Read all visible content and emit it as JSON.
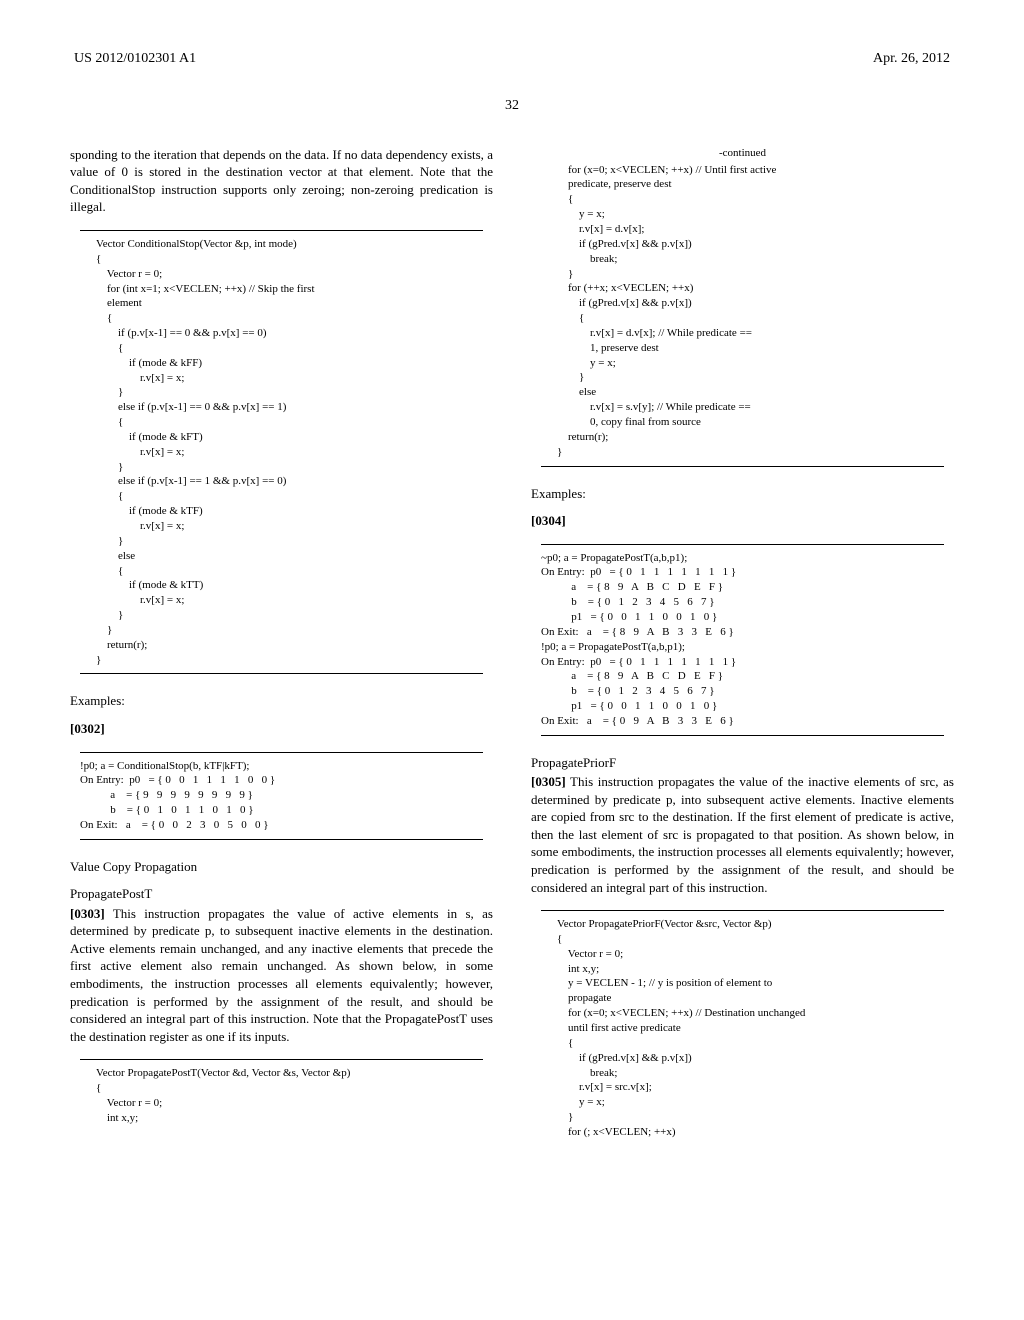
{
  "header": {
    "pub_number": "US 2012/0102301 A1",
    "date": "Apr. 26, 2012",
    "page": "32"
  },
  "col_left": {
    "intro_para": "sponding to the iteration that depends on the data. If no data dependency exists, a value of 0 is stored in the destination vector at that element. Note that the ConditionalStop instruction supports only zeroing; non-zeroing predication is illegal.",
    "code1": "Vector ConditionalStop(Vector &p, int mode)\n{\n    Vector r = 0;\n    for (int x=1; x<VECLEN; ++x) // Skip the first\n    element\n    {\n        if (p.v[x-1] == 0 && p.v[x] == 0)\n        {\n            if (mode & kFF)\n                r.v[x] = x;\n        }\n        else if (p.v[x-1] == 0 && p.v[x] == 1)\n        {\n            if (mode & kFT)\n                r.v[x] = x;\n        }\n        else if (p.v[x-1] == 1 && p.v[x] == 0)\n        {\n            if (mode & kTF)\n                r.v[x] = x;\n        }\n        else\n        {\n            if (mode & kTT)\n                r.v[x] = x;\n        }\n    }\n    return(r);\n}",
    "examples_label": "Examples:",
    "para_num1": "[0302]",
    "table1": "!p0; a = ConditionalStop(b, kTF|kFT);\nOn Entry:  p0   = { 0   0   1   1   1   1   0   0 }\n           a    = { 9   9   9   9   9   9   9   9 }\n           b    = { 0   1   0   1   1   0   1   0 }\nOn Exit:   a    = { 0   0   2   3   0   5   0   0 }",
    "vcp_label": "Value Copy Propagation",
    "ppt_label": "PropagatePostT",
    "para_num2": "[0303]",
    "ppt_para": "  This instruction propagates the value of active elements in s, as determined by predicate p, to subsequent inactive elements in the destination. Active elements remain unchanged, and any inactive elements that precede the first active element also remain unchanged. As shown below, in some embodiments, the instruction processes all elements equivalently; however, predication is performed by the assignment of the result, and should be considered an integral part of this instruction. Note that the PropagatePostT uses the destination register as one if its inputs.",
    "code2": "Vector PropagatePostT(Vector &d, Vector &s, Vector &p)\n{\n    Vector r = 0;\n    int x,y;"
  },
  "col_right": {
    "continued": "-continued",
    "code3": "    for (x=0; x<VECLEN; ++x) // Until first active\n    predicate, preserve dest\n    {\n        y = x;\n        r.v[x] = d.v[x];\n        if (gPred.v[x] && p.v[x])\n            break;\n    }\n    for (++x; x<VECLEN; ++x)\n        if (gPred.v[x] && p.v[x])\n        {\n            r.v[x] = d.v[x]; // While predicate ==\n            1, preserve dest\n            y = x;\n        }\n        else\n            r.v[x] = s.v[y]; // While predicate ==\n            0, copy final from source\n    return(r);\n}",
    "examples_label": "Examples:",
    "para_num3": "[0304]",
    "table2": "~p0; a = PropagatePostT(a,b,p1);\nOn Entry:  p0   = { 0   1   1   1   1   1   1   1 }\n           a    = { 8   9   A   B   C   D   E   F }\n           b    = { 0   1   2   3   4   5   6   7 }\n           p1   = { 0   0   1   1   0   0   1   0 }\nOn Exit:   a    = { 8   9   A   B   3   3   E   6 }\n!p0; a = PropagatePostT(a,b,p1);\nOn Entry:  p0   = { 0   1   1   1   1   1   1   1 }\n           a    = { 8   9   A   B   C   D   E   F }\n           b    = { 0   1   2   3   4   5   6   7 }\n           p1   = { 0   0   1   1   0   0   1   0 }\nOn Exit:   a    = { 0   9   A   B   3   3   E   6 }",
    "ppf_label": "PropagatePriorF",
    "para_num4": "[0305]",
    "ppf_para": "  This instruction propagates the value of the inactive elements of src, as determined by predicate p, into subsequent active elements. Inactive elements are copied from src to the destination. If the first element of predicate is active, then the last element of src is propagated to that position. As shown below, in some embodiments, the instruction processes all elements equivalently; however, predication is performed by the assignment of the result, and should be considered an integral part of this instruction.",
    "code4": "Vector PropagatePriorF(Vector &src, Vector &p)\n{\n    Vector r = 0;\n    int x,y;\n    y = VECLEN - 1; // y is position of element to\n    propagate\n    for (x=0; x<VECLEN; ++x) // Destination unchanged\n    until first active predicate\n    {\n        if (gPred.v[x] && p.v[x])\n            break;\n        r.v[x] = src.v[x];\n        y = x;\n    }\n    for (; x<VECLEN; ++x)"
  }
}
